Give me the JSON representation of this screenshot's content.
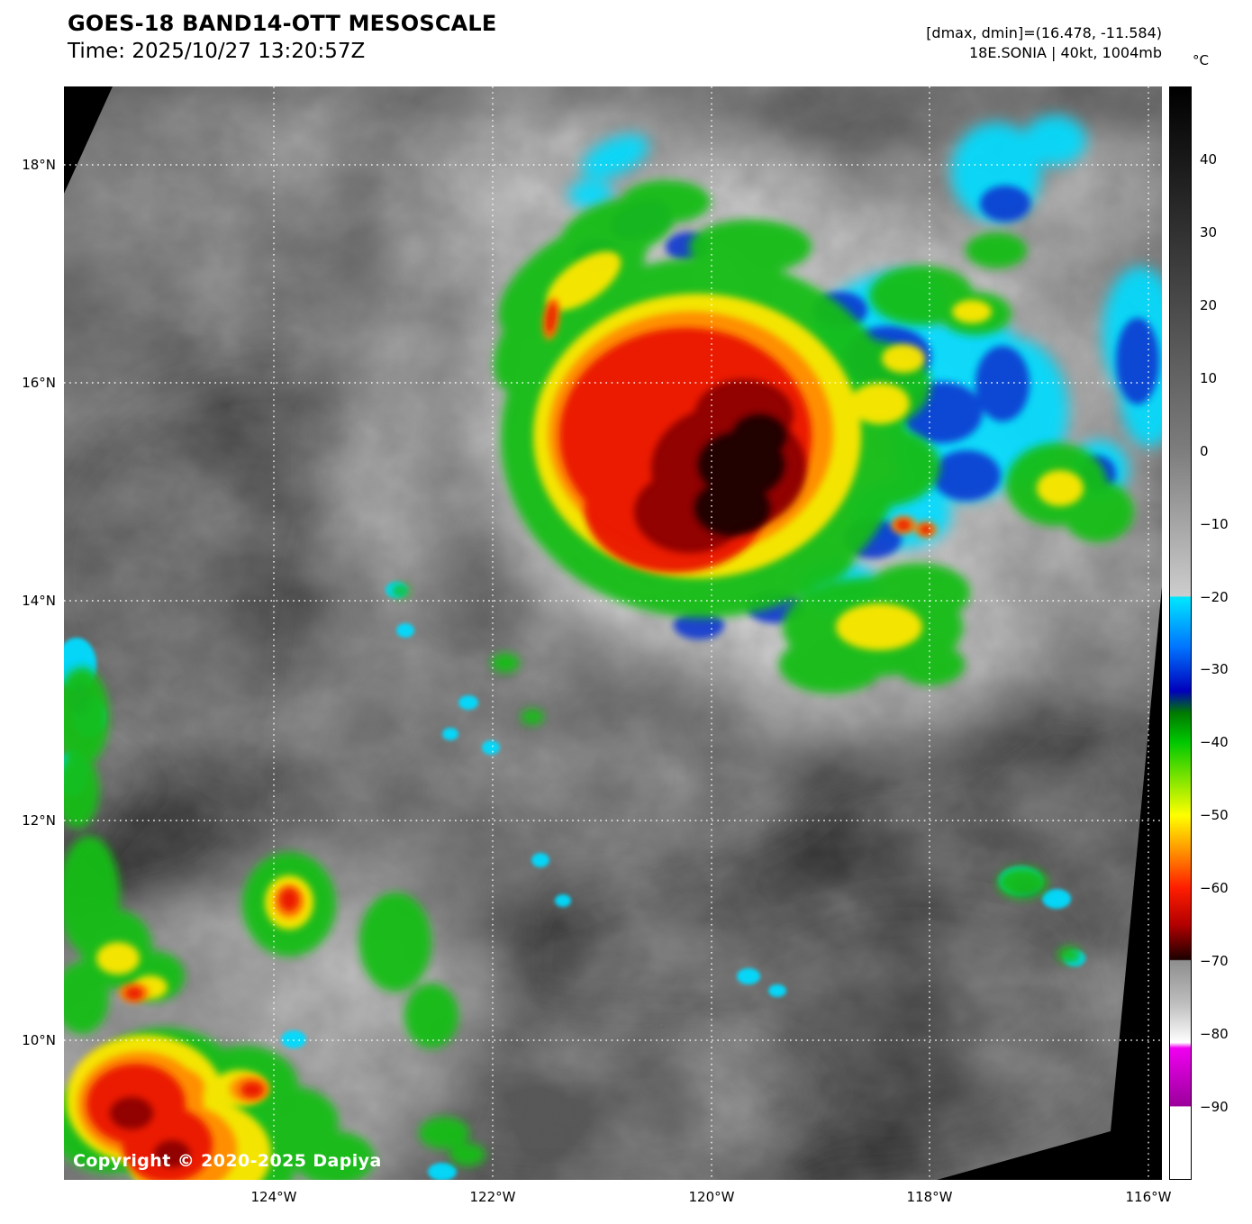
{
  "header": {
    "title": "GOES-18 BAND14-OTT MESOSCALE",
    "time": "Time: 2025/10/27 13:20:57Z",
    "dminmax": "[dmax, dmin]=(16.478, -11.584)",
    "storm": "18E.SONIA | 40kt, 1004mb"
  },
  "colorbar": {
    "unit_label": "°C",
    "range_c": [
      50,
      -100
    ],
    "ticks": [
      {
        "label": "40",
        "value": 40
      },
      {
        "label": "30",
        "value": 30
      },
      {
        "label": "20",
        "value": 20
      },
      {
        "label": "10",
        "value": 10
      },
      {
        "label": "0",
        "value": 0
      },
      {
        "label": "−10",
        "value": -10
      },
      {
        "label": "−20",
        "value": -20
      },
      {
        "label": "−30",
        "value": -30
      },
      {
        "label": "−40",
        "value": -40
      },
      {
        "label": "−50",
        "value": -50
      },
      {
        "label": "−60",
        "value": -60
      },
      {
        "label": "−70",
        "value": -70
      },
      {
        "label": "−80",
        "value": -80
      },
      {
        "label": "−90",
        "value": -90
      }
    ],
    "gradient_stops": [
      {
        "p": 0,
        "c": "#000000"
      },
      {
        "p": 20,
        "c": "#4a4a4a"
      },
      {
        "p": 33.3,
        "c": "#7d7d7d"
      },
      {
        "p": 46.6,
        "c": "#cdcdcd"
      },
      {
        "p": 46.7,
        "c": "#00e8ff"
      },
      {
        "p": 51.3,
        "c": "#0073ff"
      },
      {
        "p": 55.3,
        "c": "#0000bb"
      },
      {
        "p": 57.3,
        "c": "#007a00"
      },
      {
        "p": 60,
        "c": "#00c800"
      },
      {
        "p": 63.3,
        "c": "#7ee400"
      },
      {
        "p": 66.7,
        "c": "#ffff00"
      },
      {
        "p": 70,
        "c": "#ff9100"
      },
      {
        "p": 73.3,
        "c": "#ff1e00"
      },
      {
        "p": 76.7,
        "c": "#b30000"
      },
      {
        "p": 79.9,
        "c": "#1c0000"
      },
      {
        "p": 80,
        "c": "#8e8e8e"
      },
      {
        "p": 84,
        "c": "#bfbfbf"
      },
      {
        "p": 87.5,
        "c": "#ffffff"
      },
      {
        "p": 88,
        "c": "#f000f0"
      },
      {
        "p": 93.3,
        "c": "#9b009b"
      },
      {
        "p": 93.4,
        "c": "#ffffff"
      },
      {
        "p": 100,
        "c": "#ffffff"
      }
    ]
  },
  "axes": {
    "lat_labels": [
      "18°N",
      "16°N",
      "14°N",
      "12°N",
      "10°N"
    ],
    "lon_labels": [
      "124°W",
      "122°W",
      "120°W",
      "118°W",
      "116°W"
    ]
  },
  "map_overlay": {
    "copyright": "Copyright © 2020-2025 Dapiya"
  }
}
